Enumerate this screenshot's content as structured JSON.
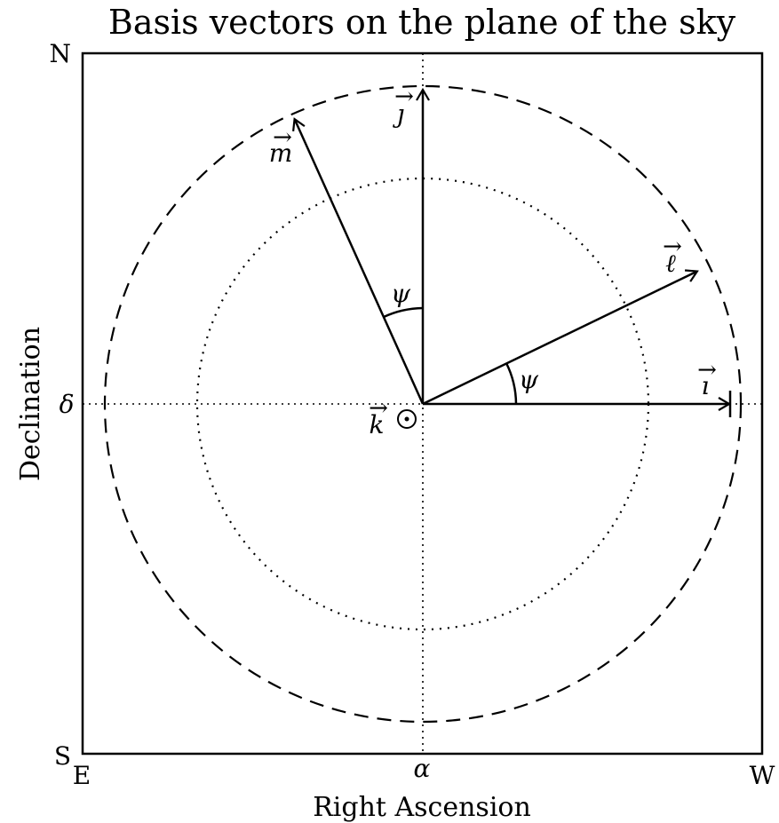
{
  "title": "Basis vectors on the plane of the sky",
  "xlabel": "Right Ascension",
  "ylabel": "Declination",
  "corners": {
    "north": "N",
    "south": "S",
    "east": "E",
    "west": "W"
  },
  "axis_marks": {
    "x": "α",
    "y": "δ"
  },
  "vectors": {
    "i": "ı",
    "j": "ȷ",
    "k": "k",
    "l": "ℓ",
    "m": "m",
    "arrow": "⃗"
  },
  "angle": "ψ",
  "out_of_plane_symbol": "⊙",
  "colors": {
    "ink": "#000000",
    "background": "#ffffff"
  }
}
